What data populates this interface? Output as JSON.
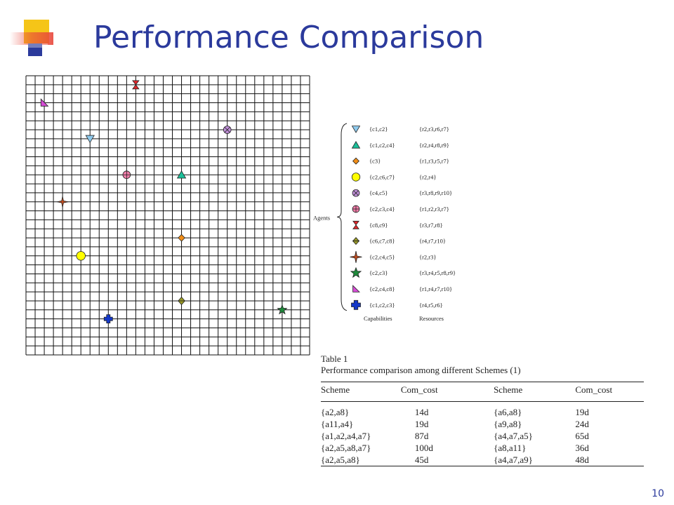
{
  "slide": {
    "title": "Performance Comparison",
    "page_number": "10"
  },
  "colors": {
    "title": "#2b3a9c",
    "deco_yellow": "#f5c518",
    "deco_red": "#e8463a",
    "deco_blue": "#2b3a9c"
  },
  "grid": {
    "columns": 31,
    "rows": 31
  },
  "agents": {
    "group_label": "Agents",
    "capabilities_header": "Capabilities",
    "resources_header": "Resources",
    "items": [
      {
        "marker": "triangle-down",
        "color": "#8ec9ec",
        "capabilities": "{c1,c2}",
        "resources": "{r2,r3,r6,r7}",
        "grid_col": 7,
        "grid_row": 7
      },
      {
        "marker": "triangle-up",
        "color": "#1bbf99",
        "capabilities": "{c1,c2,c4}",
        "resources": "{r2,r4,r8,r9}",
        "grid_col": 17,
        "grid_row": 11
      },
      {
        "marker": "diamond",
        "color": "#f18d17",
        "capabilities": "{c3}",
        "resources": "{r1,r3,r5,r7}",
        "grid_col": 17,
        "grid_row": 18
      },
      {
        "marker": "circle",
        "color": "#ffff00",
        "capabilities": "{c2,c6,c7}",
        "resources": "{r2,r4}",
        "grid_col": 6,
        "grid_row": 20
      },
      {
        "marker": "circle-x",
        "color": "#c08fd8",
        "capabilities": "{c4,c5}",
        "resources": "{r3,r8,r9,r10}",
        "grid_col": 22,
        "grid_row": 6
      },
      {
        "marker": "circle-plus",
        "color": "#f07da9",
        "capabilities": "{c2,c3,c4}",
        "resources": "{r1,r2,r3,r7}",
        "grid_col": 11,
        "grid_row": 11
      },
      {
        "marker": "hourglass",
        "color": "#e3262a",
        "capabilities": "{c8,c9}",
        "resources": "{r3,r7,r8}",
        "grid_col": 12,
        "grid_row": 1
      },
      {
        "marker": "double-triangle",
        "color": "#9a9a26",
        "capabilities": "{c6,c7,c8}",
        "resources": "{r4,r7,r10}",
        "grid_col": 17,
        "grid_row": 25
      },
      {
        "marker": "four-star",
        "color": "#c14b1e",
        "capabilities": "{c2,c4,c5}",
        "resources": "{r2,r3}",
        "grid_col": 4,
        "grid_row": 14
      },
      {
        "marker": "star",
        "color": "#1f8a3b",
        "capabilities": "{c2,c3}",
        "resources": "{r3,r4,r5,r8,r9}",
        "grid_col": 28,
        "grid_row": 26
      },
      {
        "marker": "corner-triangle",
        "color": "#d64bd6",
        "capabilities": "{c2,c4,c8}",
        "resources": "{r1,r4,r7,r10}",
        "grid_col": 2,
        "grid_row": 3
      },
      {
        "marker": "cross",
        "color": "#1438c8",
        "capabilities": "{c1,c2,c3}",
        "resources": "{r4,r5,r6}",
        "grid_col": 9,
        "grid_row": 27
      }
    ]
  },
  "table": {
    "number_label": "Table 1",
    "caption": "Performance comparison among different Schemes (1)",
    "headers": [
      "Scheme",
      "Com_cost",
      "Scheme",
      "Com_cost"
    ],
    "rows": [
      {
        "scheme1": "{a2,a8}",
        "cost1": "14d",
        "scheme2": "{a6,a8}",
        "cost2": "19d"
      },
      {
        "scheme1": "{a11,a4}",
        "cost1": "19d",
        "scheme2": "{a9,a8}",
        "cost2": "24d"
      },
      {
        "scheme1": "{a1,a2,a4,a7}",
        "cost1": "87d",
        "scheme2": "{a4,a7,a5}",
        "cost2": "65d"
      },
      {
        "scheme1": "{a2,a5,a8,a7}",
        "cost1": "100d",
        "scheme2": "{a8,a11}",
        "cost2": "36d"
      },
      {
        "scheme1": "{a2,a5,a8}",
        "cost1": "45d",
        "scheme2": "{a4,a7,a9}",
        "cost2": "48d"
      }
    ]
  }
}
